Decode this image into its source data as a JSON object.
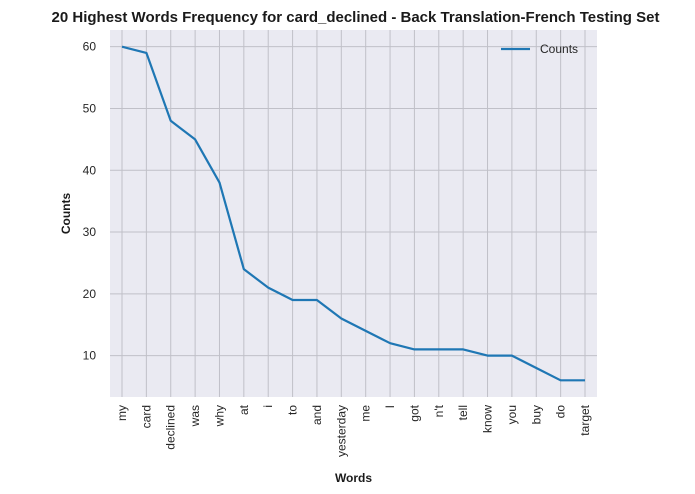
{
  "chart_data": {
    "type": "line",
    "title": "20 Highest Words Frequency for card_declined - Back Translation-French Testing Set",
    "xlabel": "Words",
    "ylabel": "Counts",
    "categories": [
      "my",
      "card",
      "declined",
      "was",
      "why",
      "at",
      "i",
      "to",
      "and",
      "yesterday",
      "me",
      "I",
      "got",
      "n't",
      "tell",
      "know",
      "you",
      "buy",
      "do",
      "target"
    ],
    "series": [
      {
        "name": "Counts",
        "values": [
          60,
          59,
          48,
          45,
          38,
          24,
          21,
          19,
          19,
          16,
          14,
          12,
          11,
          11,
          11,
          10,
          10,
          8,
          6,
          6
        ]
      }
    ],
    "ylim": [
      3.3,
      62.7
    ],
    "yticks": [
      10,
      20,
      30,
      40,
      50,
      60
    ],
    "grid": true,
    "legend_position": "top-right",
    "colors": {
      "line": "#1f77b4",
      "plot_bg": "#eaeaf2",
      "grid": "#c0c0c8"
    }
  }
}
